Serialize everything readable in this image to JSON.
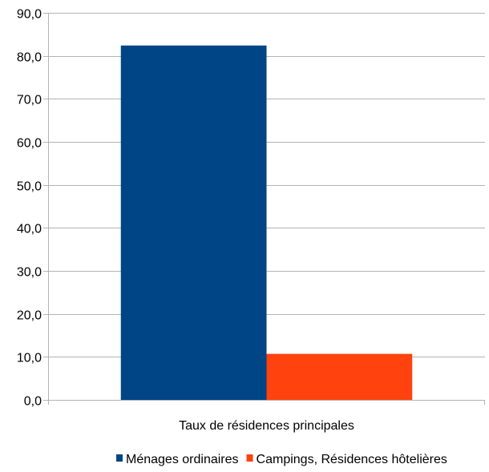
{
  "chart_data": {
    "type": "bar",
    "categories": [
      "Taux de résidences principales"
    ],
    "series": [
      {
        "name": "Ménages ordinaires",
        "values": [
          82.4
        ],
        "color": "#004586"
      },
      {
        "name": "Campings, Résidences hôtelières",
        "values": [
          10.7
        ],
        "color": "#ff420e"
      }
    ],
    "title": "",
    "xlabel": "",
    "ylabel": "",
    "ylim": [
      0,
      90
    ],
    "yticks": [
      "0,0",
      "10,0",
      "20,0",
      "30,0",
      "40,0",
      "50,0",
      "60,0",
      "70,0",
      "80,0",
      "90,0"
    ],
    "grid": true,
    "legend_position": "bottom"
  }
}
